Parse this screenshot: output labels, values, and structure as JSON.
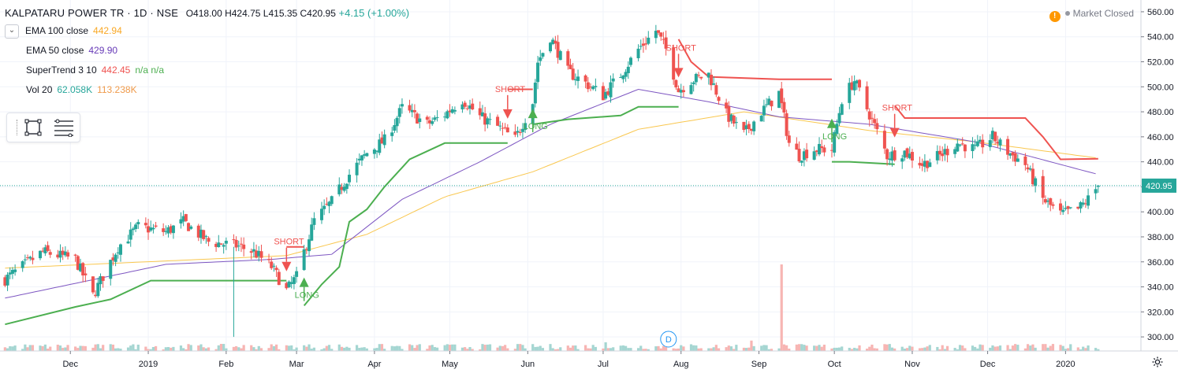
{
  "header": {
    "title": "KALPATARU POWER TR · 1D · NSE",
    "ohlc": "O418.00 H424.75 L415.35 C420.95",
    "change": "+4.15 (+1.00%)"
  },
  "legend": [
    {
      "name": "EMA 100 close",
      "value": "442.94",
      "color": "#f9a825"
    },
    {
      "name": "EMA 50 close",
      "value": "429.90",
      "color": "#673ab7"
    },
    {
      "name": "SuperTrend 3 10",
      "value": "442.45",
      "extra": "n/a  n/a",
      "color": "#ef5350"
    },
    {
      "name": "Vol 20",
      "value": "62.058K",
      "extra": "113.238K",
      "color": "#26a69a"
    }
  ],
  "status": {
    "market": "Market Closed",
    "alert_icon": "!"
  },
  "price_label": "420.95",
  "event_marker": "D",
  "colors": {
    "up": "#26a69a",
    "down": "#ef5350",
    "ema100": "#f9c74f",
    "ema50": "#7e57c2",
    "st_up": "#4caf50",
    "st_down": "#ef5350"
  },
  "chart_data": {
    "type": "candlestick",
    "symbol": "KALPATARU POWER TR",
    "interval": "1D",
    "exchange": "NSE",
    "y_range": [
      290,
      565
    ],
    "y_ticks": [
      "560.00",
      "540.00",
      "520.00",
      "500.00",
      "480.00",
      "460.00",
      "440.00",
      "420.00",
      "400.00",
      "380.00",
      "360.00",
      "340.00",
      "320.00",
      "300.00"
    ],
    "x_ticks": [
      {
        "label": "Dec",
        "date": "2018-12-01"
      },
      {
        "label": "2019",
        "date": "2019-01-01"
      },
      {
        "label": "Feb",
        "date": "2019-02-01"
      },
      {
        "label": "Mar",
        "date": "2019-03-01"
      },
      {
        "label": "Apr",
        "date": "2019-04-01"
      },
      {
        "label": "May",
        "date": "2019-05-01"
      },
      {
        "label": "Jun",
        "date": "2019-06-01"
      },
      {
        "label": "Jul",
        "date": "2019-07-01"
      },
      {
        "label": "Aug",
        "date": "2019-08-01"
      },
      {
        "label": "Sep",
        "date": "2019-09-01"
      },
      {
        "label": "Oct",
        "date": "2019-10-01"
      },
      {
        "label": "Nov",
        "date": "2019-11-01"
      },
      {
        "label": "Dec",
        "date": "2019-12-01"
      },
      {
        "label": "2020",
        "date": "2020-01-01"
      }
    ],
    "x_range": [
      "2018-11-03",
      "2020-01-31"
    ],
    "price_anchors": [
      [
        "2018-11-05",
        346
      ],
      [
        "2018-11-20",
        368
      ],
      [
        "2018-12-03",
        362
      ],
      [
        "2018-12-10",
        333
      ],
      [
        "2018-12-20",
        372
      ],
      [
        "2018-12-28",
        388
      ],
      [
        "2019-01-08",
        384
      ],
      [
        "2019-01-15",
        392
      ],
      [
        "2019-01-25",
        376
      ],
      [
        "2019-02-05",
        373
      ],
      [
        "2019-02-12",
        368
      ],
      [
        "2019-02-19",
        356
      ],
      [
        "2019-02-25",
        337
      ],
      [
        "2019-03-01",
        348
      ],
      [
        "2019-03-04",
        368
      ],
      [
        "2019-03-08",
        393
      ],
      [
        "2019-03-15",
        408
      ],
      [
        "2019-03-22",
        430
      ],
      [
        "2019-03-29",
        447
      ],
      [
        "2019-04-05",
        457
      ],
      [
        "2019-04-12",
        483
      ],
      [
        "2019-04-22",
        470
      ],
      [
        "2019-04-29",
        478
      ],
      [
        "2019-05-06",
        490
      ],
      [
        "2019-05-13",
        476
      ],
      [
        "2019-05-20",
        468
      ],
      [
        "2019-05-27",
        458
      ],
      [
        "2019-06-03",
        488
      ],
      [
        "2019-06-05",
        520
      ],
      [
        "2019-06-10",
        540
      ],
      [
        "2019-06-17",
        512
      ],
      [
        "2019-06-24",
        503
      ],
      [
        "2019-07-01",
        493
      ],
      [
        "2019-07-08",
        510
      ],
      [
        "2019-07-15",
        530
      ],
      [
        "2019-07-22",
        545
      ],
      [
        "2019-07-26",
        530
      ],
      [
        "2019-07-31",
        497
      ],
      [
        "2019-08-05",
        505
      ],
      [
        "2019-08-12",
        510
      ],
      [
        "2019-08-19",
        478
      ],
      [
        "2019-08-26",
        462
      ],
      [
        "2019-09-02",
        480
      ],
      [
        "2019-09-09",
        495
      ],
      [
        "2019-09-13",
        455
      ],
      [
        "2019-09-17",
        445
      ],
      [
        "2019-09-23",
        450
      ],
      [
        "2019-09-30",
        450
      ],
      [
        "2019-10-04",
        490
      ],
      [
        "2019-10-09",
        505
      ],
      [
        "2019-10-15",
        478
      ],
      [
        "2019-10-22",
        445
      ],
      [
        "2019-10-29",
        448
      ],
      [
        "2019-11-05",
        438
      ],
      [
        "2019-11-12",
        445
      ],
      [
        "2019-11-19",
        455
      ],
      [
        "2019-11-26",
        450
      ],
      [
        "2019-12-03",
        460
      ],
      [
        "2019-12-09",
        448
      ],
      [
        "2019-12-16",
        438
      ],
      [
        "2019-12-23",
        410
      ],
      [
        "2019-12-30",
        398
      ],
      [
        "2020-01-06",
        402
      ],
      [
        "2020-01-10",
        410
      ],
      [
        "2020-01-14",
        420.95
      ]
    ],
    "last_close": 420.95,
    "ema100_anchors": [
      [
        "2018-11-05",
        355
      ],
      [
        "2019-02-25",
        365
      ],
      [
        "2019-03-29",
        382
      ],
      [
        "2019-04-29",
        412
      ],
      [
        "2019-06-03",
        432
      ],
      [
        "2019-07-15",
        466
      ],
      [
        "2019-08-26",
        480
      ],
      [
        "2019-10-15",
        465
      ],
      [
        "2019-11-26",
        456
      ],
      [
        "2020-01-14",
        442.94
      ]
    ],
    "ema50_anchors": [
      [
        "2018-11-05",
        331
      ],
      [
        "2019-01-08",
        358
      ],
      [
        "2019-02-19",
        362
      ],
      [
        "2019-03-15",
        366
      ],
      [
        "2019-04-12",
        410
      ],
      [
        "2019-05-13",
        440
      ],
      [
        "2019-06-10",
        470
      ],
      [
        "2019-07-15",
        498
      ],
      [
        "2019-08-12",
        488
      ],
      [
        "2019-09-09",
        476
      ],
      [
        "2019-10-15",
        470
      ],
      [
        "2019-11-26",
        456
      ],
      [
        "2020-01-14",
        429.9
      ]
    ],
    "supertrend_segments": [
      {
        "trend": "up",
        "points": [
          [
            "2018-11-05",
            310
          ],
          [
            "2018-12-03",
            324
          ],
          [
            "2018-12-17",
            330
          ],
          [
            "2019-01-02",
            345
          ],
          [
            "2019-02-25",
            345
          ]
        ]
      },
      {
        "trend": "down",
        "points": [
          [
            "2019-02-25",
            372
          ],
          [
            "2019-03-04",
            372
          ]
        ]
      },
      {
        "trend": "up",
        "points": [
          [
            "2019-03-04",
            325
          ],
          [
            "2019-03-11",
            342
          ],
          [
            "2019-03-18",
            356
          ],
          [
            "2019-03-22",
            392
          ],
          [
            "2019-03-29",
            402
          ],
          [
            "2019-04-05",
            420
          ],
          [
            "2019-04-15",
            442
          ],
          [
            "2019-04-29",
            455
          ],
          [
            "2019-05-13",
            455
          ],
          [
            "2019-05-24",
            455
          ]
        ]
      },
      {
        "trend": "down",
        "points": [
          [
            "2019-05-24",
            498
          ],
          [
            "2019-06-03",
            498
          ]
        ]
      },
      {
        "trend": "up",
        "points": [
          [
            "2019-06-03",
            470
          ],
          [
            "2019-06-17",
            474
          ],
          [
            "2019-07-08",
            477
          ],
          [
            "2019-07-15",
            484
          ],
          [
            "2019-07-31",
            484
          ]
        ]
      },
      {
        "trend": "down",
        "points": [
          [
            "2019-07-31",
            538
          ],
          [
            "2019-08-05",
            520
          ],
          [
            "2019-08-12",
            508
          ],
          [
            "2019-09-09",
            506
          ],
          [
            "2019-09-30",
            506
          ]
        ]
      },
      {
        "trend": "up",
        "points": [
          [
            "2019-09-30",
            440
          ],
          [
            "2019-10-07",
            440
          ],
          [
            "2019-10-25",
            438
          ]
        ]
      },
      {
        "trend": "down",
        "points": [
          [
            "2019-10-25",
            485
          ],
          [
            "2019-10-29",
            475
          ],
          [
            "2019-12-16",
            475
          ],
          [
            "2019-12-23",
            460
          ],
          [
            "2019-12-30",
            442
          ],
          [
            "2020-01-14",
            442.45
          ]
        ]
      }
    ],
    "signals": [
      {
        "type": "SHORT",
        "date": "2019-02-25",
        "price": 355
      },
      {
        "type": "LONG",
        "date": "2019-03-04",
        "price": 345
      },
      {
        "type": "SHORT",
        "date": "2019-05-24",
        "price": 477
      },
      {
        "type": "LONG",
        "date": "2019-06-03",
        "price": 480
      },
      {
        "type": "SHORT",
        "date": "2019-07-31",
        "price": 510
      },
      {
        "type": "LONG",
        "date": "2019-09-30",
        "price": 472
      },
      {
        "type": "SHORT",
        "date": "2019-10-25",
        "price": 462
      }
    ],
    "volume_spikes": [
      {
        "date": "2019-09-10",
        "relative": 1.0
      },
      {
        "date": "2019-08-29",
        "relative": 0.12
      },
      {
        "date": "2019-07-02",
        "relative": 0.1
      },
      {
        "date": "2019-12-23",
        "relative": 0.08
      }
    ]
  }
}
